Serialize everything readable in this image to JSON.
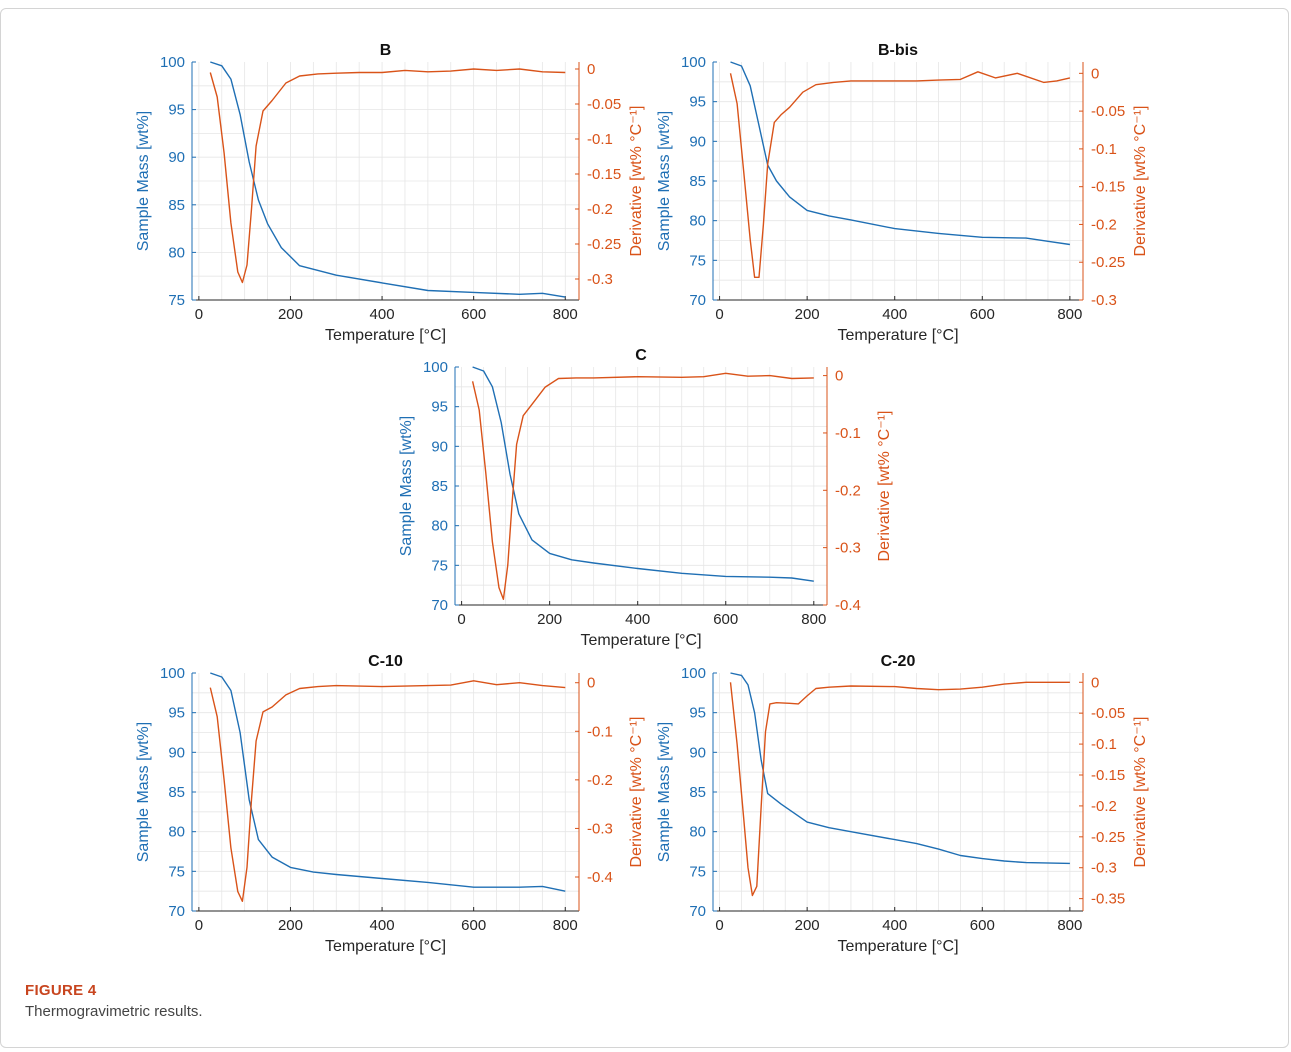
{
  "caption": {
    "label": "FIGURE 4",
    "text": "Thermogravimetric results."
  },
  "colors": {
    "mass": "#1f6fb4",
    "derivative": "#d95319",
    "grid": "#e6e6e6",
    "axis": "#262626"
  },
  "chart_data": [
    {
      "type": "line",
      "title": "B",
      "xlabel": "Temperature [°C]",
      "ylabel_left": "Sample Mass [wt%]",
      "ylabel_right": "Derivative [wt% °C⁻¹]",
      "xlim": [
        -15,
        830
      ],
      "xticks": [
        0,
        200,
        400,
        600,
        800
      ],
      "ylim_left": [
        75,
        100
      ],
      "yticks_left": [
        75,
        80,
        85,
        90,
        95,
        100
      ],
      "ylim_right": [
        -0.33,
        0.01
      ],
      "yticks_right": [
        -0.3,
        -0.25,
        -0.2,
        -0.15,
        -0.1,
        -0.05,
        0
      ],
      "grid": true,
      "series": [
        {
          "name": "Sample Mass",
          "axis": "left",
          "x": [
            25,
            50,
            70,
            90,
            110,
            130,
            150,
            180,
            220,
            300,
            400,
            500,
            600,
            700,
            750,
            800
          ],
          "y": [
            100,
            99.6,
            98.2,
            94.5,
            89.5,
            85.5,
            83.0,
            80.5,
            78.6,
            77.6,
            76.8,
            76.0,
            75.8,
            75.6,
            75.7,
            75.3
          ]
        },
        {
          "name": "Derivative",
          "axis": "right",
          "x": [
            25,
            40,
            55,
            70,
            85,
            95,
            105,
            115,
            125,
            140,
            160,
            190,
            220,
            260,
            300,
            350,
            400,
            450,
            500,
            550,
            600,
            650,
            700,
            750,
            800
          ],
          "y": [
            -0.005,
            -0.04,
            -0.12,
            -0.22,
            -0.29,
            -0.305,
            -0.28,
            -0.2,
            -0.11,
            -0.06,
            -0.045,
            -0.02,
            -0.01,
            -0.007,
            -0.006,
            -0.005,
            -0.005,
            -0.002,
            -0.004,
            -0.003,
            0.0,
            -0.002,
            0.0,
            -0.004,
            -0.005
          ]
        }
      ]
    },
    {
      "type": "line",
      "title": "B-bis",
      "xlabel": "Temperature [°C]",
      "ylabel_left": "Sample Mass [wt%]",
      "ylabel_right": "Derivative [wt% °C⁻¹]",
      "xlim": [
        -15,
        830
      ],
      "xticks": [
        0,
        200,
        400,
        600,
        800
      ],
      "ylim_left": [
        70,
        100
      ],
      "yticks_left": [
        70,
        75,
        80,
        85,
        90,
        95,
        100
      ],
      "ylim_right": [
        -0.3,
        0.015
      ],
      "yticks_right": [
        -0.3,
        -0.25,
        -0.2,
        -0.15,
        -0.1,
        -0.05,
        0
      ],
      "grid": true,
      "series": [
        {
          "name": "Sample Mass",
          "axis": "left",
          "x": [
            25,
            50,
            70,
            90,
            110,
            130,
            160,
            200,
            250,
            300,
            400,
            500,
            600,
            700,
            750,
            800
          ],
          "y": [
            100,
            99.5,
            97.0,
            92.0,
            87.0,
            85.0,
            83.0,
            81.3,
            80.6,
            80.1,
            79.0,
            78.4,
            77.9,
            77.8,
            77.4,
            77.0
          ]
        },
        {
          "name": "Derivative",
          "axis": "right",
          "x": [
            25,
            40,
            55,
            70,
            80,
            90,
            100,
            110,
            125,
            140,
            160,
            190,
            220,
            260,
            300,
            350,
            400,
            450,
            500,
            550,
            590,
            630,
            680,
            740,
            770,
            800
          ],
          "y": [
            0.0,
            -0.04,
            -0.13,
            -0.22,
            -0.27,
            -0.27,
            -0.2,
            -0.12,
            -0.065,
            -0.055,
            -0.045,
            -0.025,
            -0.015,
            -0.012,
            -0.01,
            -0.01,
            -0.01,
            -0.01,
            -0.009,
            -0.008,
            0.002,
            -0.006,
            0.0,
            -0.012,
            -0.01,
            -0.006
          ]
        }
      ]
    },
    {
      "type": "line",
      "title": "C",
      "xlabel": "Temperature [°C]",
      "ylabel_left": "Sample Mass [wt%]",
      "ylabel_right": "Derivative [wt% °C⁻¹]",
      "xlim": [
        -15,
        830
      ],
      "xticks": [
        0,
        200,
        400,
        600,
        800
      ],
      "ylim_left": [
        70,
        100
      ],
      "yticks_left": [
        70,
        75,
        80,
        85,
        90,
        95,
        100
      ],
      "ylim_right": [
        -0.4,
        0.015
      ],
      "yticks_right": [
        -0.4,
        -0.3,
        -0.2,
        -0.1,
        0
      ],
      "grid": true,
      "series": [
        {
          "name": "Sample Mass",
          "axis": "left",
          "x": [
            25,
            50,
            70,
            90,
            110,
            130,
            160,
            200,
            250,
            300,
            400,
            500,
            600,
            700,
            750,
            800
          ],
          "y": [
            100,
            99.5,
            97.5,
            93.0,
            86.5,
            81.5,
            78.2,
            76.5,
            75.7,
            75.3,
            74.6,
            74.0,
            73.6,
            73.5,
            73.4,
            73.0
          ]
        },
        {
          "name": "Derivative",
          "axis": "right",
          "x": [
            25,
            40,
            55,
            70,
            85,
            95,
            105,
            115,
            125,
            140,
            160,
            190,
            220,
            260,
            300,
            400,
            500,
            550,
            600,
            650,
            700,
            750,
            800
          ],
          "y": [
            -0.01,
            -0.06,
            -0.17,
            -0.29,
            -0.37,
            -0.39,
            -0.33,
            -0.22,
            -0.12,
            -0.07,
            -0.05,
            -0.02,
            -0.005,
            -0.004,
            -0.004,
            -0.002,
            -0.003,
            -0.002,
            0.004,
            -0.001,
            0.0,
            -0.005,
            -0.004
          ]
        }
      ]
    },
    {
      "type": "line",
      "title": "C-10",
      "xlabel": "Temperature [°C]",
      "ylabel_left": "Sample Mass [wt%]",
      "ylabel_right": "Derivative [wt% °C⁻¹]",
      "xlim": [
        -15,
        830
      ],
      "xticks": [
        0,
        200,
        400,
        600,
        800
      ],
      "ylim_left": [
        70,
        100
      ],
      "yticks_left": [
        70,
        75,
        80,
        85,
        90,
        95,
        100
      ],
      "ylim_right": [
        -0.47,
        0.02
      ],
      "yticks_right": [
        -0.4,
        -0.3,
        -0.2,
        -0.1,
        0
      ],
      "grid": true,
      "series": [
        {
          "name": "Sample Mass",
          "axis": "left",
          "x": [
            25,
            50,
            70,
            90,
            110,
            130,
            160,
            200,
            250,
            300,
            400,
            500,
            600,
            700,
            750,
            800
          ],
          "y": [
            100,
            99.5,
            97.8,
            92.5,
            84.0,
            79.0,
            76.8,
            75.5,
            74.9,
            74.6,
            74.1,
            73.6,
            73.0,
            73.0,
            73.1,
            72.5
          ]
        },
        {
          "name": "Derivative",
          "axis": "right",
          "x": [
            25,
            40,
            55,
            70,
            85,
            95,
            105,
            115,
            125,
            140,
            160,
            190,
            220,
            260,
            300,
            400,
            500,
            550,
            600,
            650,
            700,
            750,
            800
          ],
          "y": [
            -0.01,
            -0.07,
            -0.2,
            -0.34,
            -0.43,
            -0.45,
            -0.38,
            -0.24,
            -0.12,
            -0.06,
            -0.05,
            -0.025,
            -0.012,
            -0.008,
            -0.006,
            -0.008,
            -0.006,
            -0.005,
            0.004,
            -0.004,
            0.0,
            -0.006,
            -0.01
          ]
        }
      ]
    },
    {
      "type": "line",
      "title": "C-20",
      "xlabel": "Temperature [°C]",
      "ylabel_left": "Sample Mass [wt%]",
      "ylabel_right": "Derivative [wt% °C⁻¹]",
      "xlim": [
        -15,
        830
      ],
      "xticks": [
        0,
        200,
        400,
        600,
        800
      ],
      "ylim_left": [
        70,
        100
      ],
      "yticks_left": [
        70,
        75,
        80,
        85,
        90,
        95,
        100
      ],
      "ylim_right": [
        -0.37,
        0.015
      ],
      "yticks_right": [
        -0.35,
        -0.3,
        -0.25,
        -0.2,
        -0.15,
        -0.1,
        -0.05,
        0
      ],
      "grid": true,
      "series": [
        {
          "name": "Sample Mass",
          "axis": "left",
          "x": [
            25,
            50,
            65,
            80,
            95,
            110,
            140,
            200,
            250,
            300,
            400,
            450,
            500,
            550,
            600,
            650,
            700,
            800
          ],
          "y": [
            100,
            99.7,
            98.5,
            95.0,
            89.0,
            84.8,
            83.5,
            81.2,
            80.5,
            80.0,
            79.0,
            78.5,
            77.8,
            77.0,
            76.6,
            76.3,
            76.1,
            76.0
          ]
        },
        {
          "name": "Derivative",
          "axis": "right",
          "x": [
            25,
            40,
            55,
            65,
            75,
            85,
            95,
            105,
            115,
            130,
            160,
            180,
            200,
            220,
            250,
            300,
            400,
            450,
            500,
            550,
            600,
            650,
            700,
            800
          ],
          "y": [
            0.0,
            -0.1,
            -0.22,
            -0.3,
            -0.345,
            -0.33,
            -0.2,
            -0.08,
            -0.035,
            -0.033,
            -0.034,
            -0.035,
            -0.022,
            -0.01,
            -0.008,
            -0.006,
            -0.007,
            -0.01,
            -0.012,
            -0.011,
            -0.008,
            -0.003,
            0.0,
            0.0
          ]
        }
      ]
    }
  ]
}
